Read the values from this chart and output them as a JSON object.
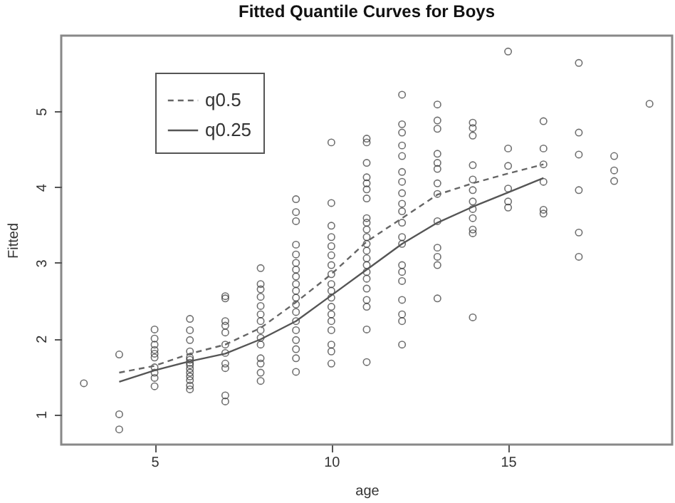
{
  "chart_data": {
    "type": "scatter",
    "title": "Fitted Quantile Curves for Boys",
    "xlabel": "age",
    "ylabel": "Fitted",
    "xlim": [
      2.36,
      19.64
    ],
    "xticks": [
      5,
      10,
      15
    ],
    "ylim": [
      0.6,
      6.0
    ],
    "yticks": [
      {
        "value": 1,
        "label": "1"
      },
      {
        "value": 2,
        "label": "2"
      },
      {
        "value": 3,
        "label": "3"
      },
      {
        "value": 4,
        "label": "4"
      },
      {
        "value": 5,
        "label": "5"
      }
    ],
    "grid": false,
    "legend": "top left",
    "series": [
      {
        "marker": "circle",
        "color": "#333333",
        "x": [
          3,
          4,
          4,
          4,
          5,
          5,
          5,
          5,
          5,
          5,
          5,
          5,
          5,
          5,
          6,
          6,
          6,
          6,
          6,
          6,
          6,
          6,
          6,
          6,
          6,
          6,
          6,
          6,
          7,
          7,
          7,
          7,
          7,
          7,
          7,
          7,
          7,
          7,
          7,
          8,
          8,
          8,
          8,
          8,
          8,
          8,
          8,
          8,
          8,
          8,
          8,
          8,
          8,
          9,
          9,
          9,
          9,
          9,
          9,
          9,
          9,
          9,
          9,
          9,
          9,
          9,
          9,
          9,
          9,
          9,
          9,
          9,
          10,
          10,
          10,
          10,
          10,
          10,
          10,
          10,
          10,
          10,
          10,
          10,
          10,
          10,
          10,
          10,
          10,
          10,
          11,
          11,
          11,
          11,
          11,
          11,
          11,
          11,
          11,
          11,
          11,
          11,
          11,
          11,
          11,
          11,
          11,
          11,
          11,
          11,
          11,
          11,
          12,
          12,
          12,
          12,
          12,
          12,
          12,
          12,
          12,
          12,
          12,
          12,
          12,
          12,
          12,
          12,
          12,
          12,
          12,
          12,
          13,
          13,
          13,
          13,
          13,
          13,
          13,
          13,
          13,
          13,
          13,
          13,
          13,
          14,
          14,
          14,
          14,
          14,
          14,
          14,
          14,
          14,
          14,
          14,
          14,
          15,
          15,
          15,
          15,
          15,
          15,
          16,
          16,
          16,
          16,
          16,
          16,
          17,
          17,
          17,
          17,
          17,
          17,
          18,
          18,
          18,
          19
        ],
        "values": [
          1.41,
          1.79,
          1.0,
          0.8,
          2.12,
          2.0,
          1.92,
          1.85,
          1.8,
          1.75,
          1.62,
          1.55,
          1.48,
          1.37,
          2.26,
          2.11,
          1.98,
          1.83,
          1.75,
          1.72,
          1.68,
          1.65,
          1.6,
          1.55,
          1.5,
          1.45,
          1.38,
          1.33,
          2.56,
          2.53,
          2.23,
          2.17,
          2.08,
          1.92,
          1.81,
          1.67,
          1.61,
          1.25,
          1.17,
          2.93,
          2.72,
          2.65,
          2.55,
          2.43,
          2.32,
          2.23,
          2.11,
          2.01,
          1.92,
          1.74,
          1.67,
          1.55,
          1.44,
          3.84,
          3.67,
          3.55,
          3.24,
          3.11,
          3.0,
          2.91,
          2.82,
          2.72,
          2.63,
          2.54,
          2.45,
          2.35,
          2.23,
          2.11,
          1.98,
          1.86,
          1.74,
          1.56,
          4.59,
          3.79,
          3.49,
          3.34,
          3.22,
          3.1,
          2.97,
          2.85,
          2.72,
          2.63,
          2.54,
          2.42,
          2.32,
          2.23,
          2.11,
          1.92,
          1.83,
          1.67,
          4.64,
          4.59,
          4.32,
          4.13,
          4.05,
          3.97,
          3.85,
          3.59,
          3.53,
          3.44,
          3.34,
          3.25,
          3.16,
          3.06,
          2.97,
          2.88,
          2.79,
          2.66,
          2.51,
          2.42,
          2.12,
          1.69,
          5.22,
          4.83,
          4.72,
          4.55,
          4.41,
          4.2,
          4.07,
          3.92,
          3.78,
          3.68,
          3.53,
          3.34,
          3.25,
          2.97,
          2.88,
          2.76,
          2.51,
          2.32,
          2.23,
          1.92,
          5.09,
          4.88,
          4.77,
          4.44,
          4.32,
          4.24,
          4.05,
          3.91,
          3.55,
          3.2,
          3.08,
          2.97,
          2.53,
          4.85,
          4.78,
          4.68,
          4.29,
          4.1,
          3.96,
          3.81,
          3.71,
          3.59,
          3.44,
          3.39,
          2.28,
          5.79,
          4.51,
          4.28,
          3.98,
          3.81,
          3.73,
          4.87,
          4.51,
          4.3,
          4.07,
          3.7,
          3.65,
          5.64,
          4.72,
          4.43,
          3.96,
          3.4,
          3.08,
          4.41,
          4.22,
          4.08,
          5.1
        ]
      },
      {
        "type": "line",
        "name": "q0.5",
        "color": "#666666",
        "line_style": "dashed",
        "x": [
          4,
          5,
          6,
          7,
          8,
          9,
          10,
          11,
          12,
          13,
          14,
          15,
          16
        ],
        "values": [
          1.55,
          1.64,
          1.8,
          1.92,
          2.14,
          2.48,
          2.85,
          3.28,
          3.59,
          3.9,
          4.05,
          4.18,
          4.3
        ]
      },
      {
        "type": "line",
        "name": "q0.25",
        "color": "#555555",
        "line_style": "solid",
        "x": [
          4,
          5,
          6,
          7,
          8,
          9,
          10,
          11,
          12,
          13,
          14,
          15,
          16
        ],
        "values": [
          1.43,
          1.58,
          1.7,
          1.8,
          1.99,
          2.23,
          2.57,
          2.91,
          3.25,
          3.53,
          3.74,
          3.93,
          4.12
        ]
      }
    ]
  }
}
